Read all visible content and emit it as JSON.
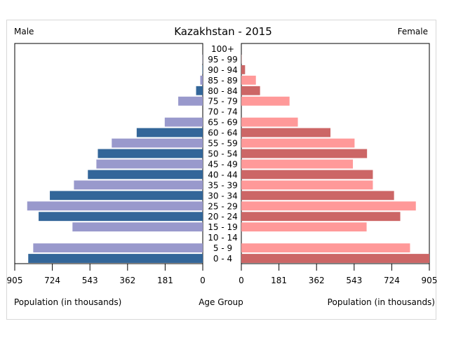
{
  "chart_data": {
    "type": "bar",
    "title": "Kazakhstan - 2015",
    "left_label": "Male",
    "right_label": "Female",
    "center_axis_label": "Age Group",
    "left_axis_label": "Population (in thousands)",
    "right_axis_label": "Population (in thousands)",
    "xlim": [
      0,
      905
    ],
    "ticks": [
      0,
      181,
      362,
      543,
      724,
      905
    ],
    "tick_labels_left": [
      "905",
      "724",
      "543",
      "362",
      "181",
      "0"
    ],
    "tick_labels_right": [
      "0",
      "181",
      "362",
      "543",
      "724",
      "905"
    ],
    "categories": [
      "100+",
      "95 - 99",
      "90 - 94",
      "85 - 89",
      "80 - 84",
      "75 - 79",
      "70 - 74",
      "65 - 69",
      "60 - 64",
      "55 - 59",
      "50 - 54",
      "45 - 49",
      "40 - 44",
      "35 - 39",
      "30 - 34",
      "25 - 29",
      "20 - 24",
      "15 - 19",
      "10 - 14",
      "5 - 9",
      "0 - 4"
    ],
    "series": [
      {
        "name": "Male",
        "values": [
          0,
          1,
          2,
          12,
          32,
          118,
          0,
          183,
          318,
          438,
          505,
          512,
          553,
          620,
          736,
          845,
          790,
          627,
          0,
          816,
          840
        ]
      },
      {
        "name": "Female",
        "values": [
          0,
          1,
          18,
          70,
          90,
          232,
          0,
          272,
          429,
          545,
          605,
          537,
          633,
          633,
          735,
          840,
          765,
          603,
          0,
          812,
          905
        ]
      }
    ],
    "colors": {
      "male_dark": "#336699",
      "male_light": "#9999cc",
      "female_dark": "#cc6666",
      "female_light": "#ff9999"
    }
  }
}
